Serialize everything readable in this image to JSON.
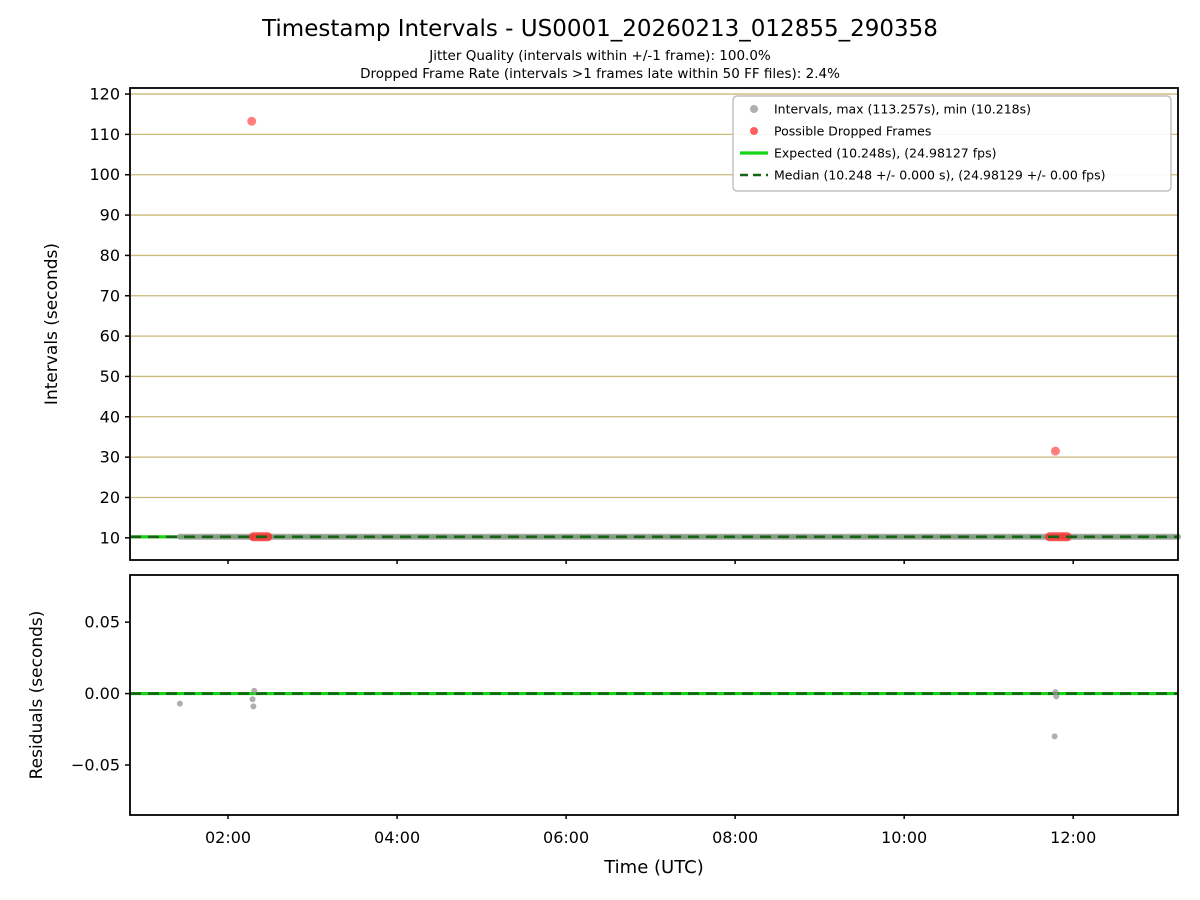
{
  "figure": {
    "title": "Timestamp Intervals - US0001_20260213_012855_290358",
    "subtitle_jitter": "Jitter Quality (intervals within +/-1 frame): 100.0%",
    "subtitle_dropped": "Dropped Frame Rate (intervals >1 frames late within 50 FF files): 2.4%"
  },
  "colors": {
    "grid": "#ccb878",
    "expected": "#17d417",
    "median": "#156315",
    "intervals": "#949494",
    "dropped": "#ff2a2a",
    "spine": "#000000",
    "legend_border": "#b3b3b3"
  },
  "xaxis": {
    "label": "Time (UTC)",
    "lim_hours": [
      0.84,
      13.24
    ],
    "ticks": [
      {
        "hours": 2,
        "label": "02:00"
      },
      {
        "hours": 4,
        "label": "04:00"
      },
      {
        "hours": 6,
        "label": "06:00"
      },
      {
        "hours": 8,
        "label": "08:00"
      },
      {
        "hours": 10,
        "label": "10:00"
      },
      {
        "hours": 12,
        "label": "12:00"
      }
    ]
  },
  "chart_data": [
    {
      "type": "scatter",
      "title": "Timestamp Intervals - US0001_20260213_012855_290358",
      "ylabel": "Intervals (seconds)",
      "ylim": [
        4.5,
        121.5
      ],
      "grid": true,
      "yticks": [
        {
          "value": 10,
          "label": "10"
        },
        {
          "value": 20,
          "label": "20"
        },
        {
          "value": 30,
          "label": "30"
        },
        {
          "value": 40,
          "label": "40"
        },
        {
          "value": 50,
          "label": "50"
        },
        {
          "value": 60,
          "label": "60"
        },
        {
          "value": 70,
          "label": "70"
        },
        {
          "value": 80,
          "label": "80"
        },
        {
          "value": 90,
          "label": "90"
        },
        {
          "value": 100,
          "label": "100"
        },
        {
          "value": 110,
          "label": "110"
        },
        {
          "value": 120,
          "label": "120"
        }
      ],
      "expected": {
        "value": 10.248,
        "fps": "24.98127"
      },
      "median": {
        "value": 10.248,
        "fps": "24.98129"
      },
      "max_interval_s": 113.257,
      "min_interval_s": 10.218,
      "intervals_baseline": {
        "start_hours": 1.43,
        "end_hours": 13.24,
        "value": 10.248
      },
      "dropped_points": [
        {
          "time_utc": "02:17",
          "hours": 2.28,
          "value": 113.257
        },
        {
          "time_utc": "11:47",
          "hours": 11.79,
          "value": 31.5
        }
      ],
      "dropped_clusters": [
        {
          "start_hours": 2.3,
          "end_hours": 2.47,
          "value": 10.25
        },
        {
          "start_hours": 11.72,
          "end_hours": 11.93,
          "value": 10.25
        }
      ],
      "legend": [
        {
          "marker": "dot",
          "color_key": "intervals",
          "label": "Intervals, max (113.257s), min (10.218s)"
        },
        {
          "marker": "dot",
          "color_key": "dropped",
          "label": "Possible Dropped Frames"
        },
        {
          "marker": "line",
          "color_key": "expected",
          "label": "Expected (10.248s), (24.98127 fps)"
        },
        {
          "marker": "dashed",
          "color_key": "median",
          "label": "Median (10.248 +/- 0.000 s), (24.98129 +/- 0.00 fps)"
        }
      ]
    },
    {
      "type": "scatter",
      "ylabel": "Residuals (seconds)",
      "xlabel": "Time (UTC)",
      "ylim": [
        -0.085,
        0.083
      ],
      "grid": false,
      "yticks": [
        {
          "value": 0.05,
          "label": "0.05"
        },
        {
          "value": 0,
          "label": "0.00"
        },
        {
          "value": -0.05,
          "label": "−0.05"
        }
      ],
      "expected_value": 0,
      "median_value": 0,
      "points": [
        {
          "hours": 1.43,
          "value": -0.007
        },
        {
          "hours": 2.29,
          "value": -0.004
        },
        {
          "hours": 2.31,
          "value": 0.002
        },
        {
          "hours": 2.3,
          "value": -0.009
        },
        {
          "hours": 11.79,
          "value": 0.001
        },
        {
          "hours": 11.8,
          "value": -0.002
        },
        {
          "hours": 11.78,
          "value": -0.03
        }
      ]
    }
  ]
}
